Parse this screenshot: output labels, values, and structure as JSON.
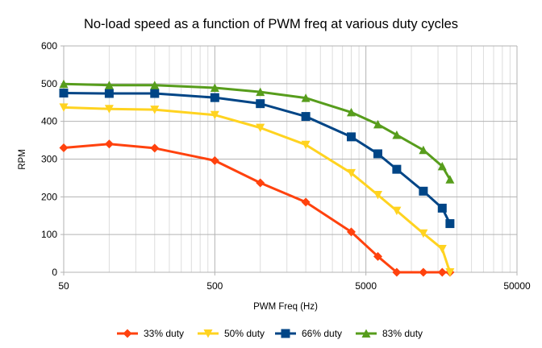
{
  "chart_data": {
    "type": "line",
    "title": "No-load speed as a function of PWM freq at various duty cycles",
    "xlabel": "PWM Freq (Hz)",
    "ylabel": "RPM",
    "x_scale": "log",
    "xlim": [
      50,
      50000
    ],
    "ylim": [
      0,
      600
    ],
    "x_ticks": [
      50,
      500,
      5000,
      50000
    ],
    "x_tick_labels": [
      "50",
      "500",
      "5000",
      "50000"
    ],
    "y_ticks": [
      0,
      100,
      200,
      300,
      400,
      500,
      600
    ],
    "y_tick_labels": [
      "0",
      "100",
      "200",
      "300",
      "400",
      "500",
      "600"
    ],
    "grid": true,
    "legend_position": "bottom",
    "x": [
      50,
      100,
      200,
      500,
      1000,
      2000,
      4000,
      6000,
      8000,
      12000,
      16000,
      18000
    ],
    "series": [
      {
        "name": "33% duty",
        "color": "#ff420e",
        "marker": "diamond",
        "x": [
          50,
          100,
          200,
          500,
          1000,
          2000,
          4000,
          6000,
          8000,
          12000,
          16000,
          18000
        ],
        "values": [
          330,
          340,
          329,
          296,
          237,
          186,
          107,
          42,
          0,
          0,
          0,
          0
        ]
      },
      {
        "name": "50% duty",
        "color": "#ffd320",
        "marker": "triangle-down",
        "x": [
          50,
          100,
          200,
          500,
          1000,
          2000,
          4000,
          6000,
          8000,
          12000,
          16000,
          18000
        ],
        "values": [
          437,
          433,
          431,
          417,
          383,
          338,
          263,
          205,
          163,
          103,
          62,
          0
        ]
      },
      {
        "name": "66% duty",
        "color": "#004586",
        "marker": "square",
        "x": [
          50,
          100,
          200,
          500,
          1000,
          2000,
          4000,
          6000,
          8000,
          12000,
          16000,
          18000
        ],
        "values": [
          475,
          474,
          474,
          463,
          447,
          413,
          359,
          314,
          273,
          215,
          170,
          129
        ]
      },
      {
        "name": "83% duty",
        "color": "#579d1c",
        "marker": "triangle-up",
        "x": [
          50,
          100,
          200,
          500,
          1000,
          2000,
          4000,
          6000,
          8000,
          12000,
          16000,
          18000
        ],
        "values": [
          499,
          496,
          496,
          489,
          478,
          462,
          424,
          392,
          364,
          324,
          281,
          246
        ]
      }
    ]
  }
}
